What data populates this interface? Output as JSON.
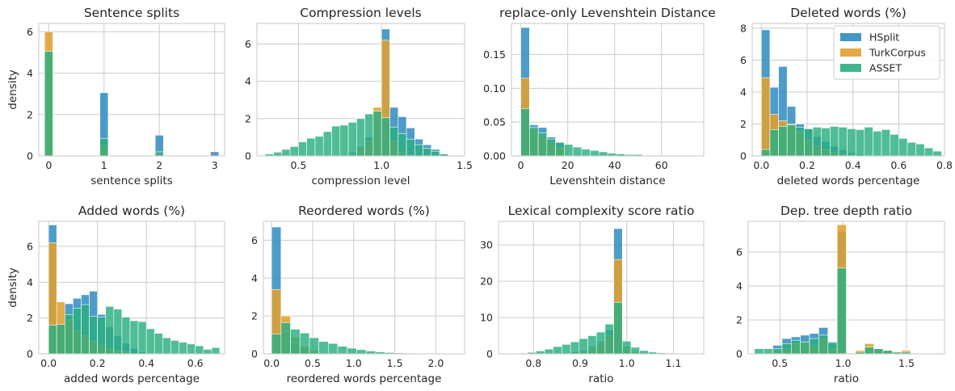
{
  "colors": {
    "HSplit": "#2f8bc0",
    "TurkCorpus": "#e0a030",
    "ASSET": "#2aae80"
  },
  "legend": {
    "entries": [
      "HSplit",
      "TurkCorpus",
      "ASSET"
    ],
    "placement": "top-right",
    "panel": 3
  },
  "chart_data": [
    {
      "type": "bar",
      "title": "Sentence splits",
      "xlabel": "sentence splits",
      "ylabel": "density",
      "xlim": [
        -0.18,
        3.18
      ],
      "ylim": [
        0,
        6.4
      ],
      "xticks": [
        0,
        1,
        2,
        3
      ],
      "xtick_labels": [
        "0",
        "1",
        "2",
        "3"
      ],
      "yticks": [
        0,
        2,
        4,
        6
      ],
      "ytick_labels": [
        "0",
        "2",
        "4",
        "6"
      ],
      "bin_width": 0.15,
      "bins": [
        0,
        1,
        2,
        3
      ],
      "series": [
        {
          "name": "HSplit",
          "values": [
            0.1,
            3.05,
            1.0,
            0.2
          ]
        },
        {
          "name": "TurkCorpus",
          "values": [
            6.0,
            0.5,
            0.15,
            0
          ]
        },
        {
          "name": "ASSET",
          "values": [
            5.05,
            0.85,
            0.2,
            0
          ]
        }
      ]
    },
    {
      "type": "bar",
      "title": "Compression levels",
      "xlabel": "compression level",
      "ylabel": "",
      "xlim": [
        0.25,
        1.5
      ],
      "ylim": [
        0,
        7.1
      ],
      "xticks": [
        0.5,
        1.0,
        1.5
      ],
      "xtick_labels": [
        "0.5",
        "1.0",
        "1.5"
      ],
      "yticks": [
        0,
        2,
        4,
        6
      ],
      "ytick_labels": [
        "0",
        "2",
        "4",
        "6"
      ],
      "bin_width": 0.05,
      "bins": [
        0.3,
        0.35,
        0.4,
        0.45,
        0.5,
        0.55,
        0.6,
        0.65,
        0.7,
        0.75,
        0.8,
        0.85,
        0.9,
        0.95,
        1.0,
        1.05,
        1.1,
        1.15,
        1.2,
        1.25,
        1.3,
        1.35
      ],
      "series": [
        {
          "name": "HSplit",
          "values": [
            0,
            0,
            0,
            0,
            0,
            0,
            0,
            0,
            0,
            0.05,
            0.2,
            0.5,
            1.0,
            1.9,
            6.8,
            2.6,
            2.1,
            1.5,
            0.9,
            0.6,
            0.35,
            0.1
          ]
        },
        {
          "name": "TurkCorpus",
          "values": [
            0,
            0,
            0,
            0,
            0,
            0,
            0,
            0,
            0,
            0,
            0.1,
            0.4,
            0.8,
            2.6,
            6.2,
            0.8,
            0.2,
            0.05,
            0,
            0,
            0,
            0
          ]
        },
        {
          "name": "ASSET",
          "values": [
            0.1,
            0.2,
            0.35,
            0.5,
            0.75,
            0.95,
            1.05,
            1.3,
            1.6,
            1.65,
            1.8,
            2.0,
            2.25,
            2.4,
            2.05,
            1.55,
            1.2,
            0.9,
            0.6,
            0.4,
            0.25,
            0.1
          ]
        }
      ]
    },
    {
      "type": "bar",
      "title": "replace-only Levenshtein Distance",
      "xlabel": "Levenshtein distance",
      "ylabel": "",
      "xlim": [
        -4,
        78
      ],
      "ylim": [
        0,
        0.196
      ],
      "xticks": [
        0,
        20,
        40,
        60
      ],
      "xtick_labels": [
        "0",
        "20",
        "40",
        "60"
      ],
      "yticks": [
        0,
        0.05,
        0.1,
        0.15
      ],
      "ytick_labels": [
        "0.00",
        "0.05",
        "0.10",
        "0.15"
      ],
      "bin_width": 3.7,
      "bins": [
        0,
        3.7,
        7.4,
        11.1,
        14.8,
        18.5,
        22.2,
        25.9,
        29.6,
        33.3,
        37,
        40.7,
        44.4,
        48.1,
        51.8,
        55.5,
        59.2,
        62.9,
        66.6,
        70.3
      ],
      "series": [
        {
          "name": "HSplit",
          "values": [
            0.19,
            0.046,
            0.042,
            0.028,
            0.02,
            0,
            0,
            0,
            0,
            0,
            0,
            0,
            0,
            0,
            0,
            0,
            0,
            0,
            0,
            0
          ]
        },
        {
          "name": "TurkCorpus",
          "values": [
            0.115,
            0.04,
            0.03,
            0.02,
            0.012,
            0,
            0,
            0,
            0,
            0,
            0,
            0,
            0,
            0,
            0,
            0,
            0,
            0,
            0,
            0
          ]
        },
        {
          "name": "ASSET",
          "values": [
            0.07,
            0.042,
            0.034,
            0.025,
            0.02,
            0.017,
            0.013,
            0.01,
            0.008,
            0.006,
            0.004,
            0.003,
            0.002,
            0.002,
            0.001,
            0.001,
            0.001,
            0.0005,
            0.0003,
            0.0002
          ]
        }
      ]
    },
    {
      "type": "bar",
      "title": "Deleted words (%)",
      "xlabel": "deleted words percentage",
      "ylabel": "",
      "xlim": [
        -0.04,
        0.8
      ],
      "ylim": [
        0,
        8.3
      ],
      "xticks": [
        0,
        0.2,
        0.4,
        0.6,
        0.8
      ],
      "xtick_labels": [
        "0.0",
        "0.2",
        "0.4",
        "0.6",
        "0.8"
      ],
      "yticks": [
        0,
        2,
        4,
        6,
        8
      ],
      "ytick_labels": [
        "0",
        "2",
        "4",
        "6",
        "8"
      ],
      "bin_width": 0.0375,
      "bins": [
        0,
        0.0375,
        0.075,
        0.1125,
        0.15,
        0.1875,
        0.225,
        0.2625,
        0.3,
        0.3375,
        0.375,
        0.4125,
        0.45,
        0.4875,
        0.525,
        0.5625,
        0.6,
        0.6375,
        0.675,
        0.7125,
        0.75
      ],
      "series": [
        {
          "name": "HSplit",
          "values": [
            7.9,
            4.3,
            5.6,
            3.1,
            2.0,
            1.7,
            1.2,
            0.9,
            0.6,
            0.4,
            0.2,
            0.1,
            0,
            0,
            0,
            0,
            0,
            0,
            0,
            0,
            0
          ]
        },
        {
          "name": "TurkCorpus",
          "values": [
            4.9,
            2.6,
            2.2,
            2.0,
            1.5,
            1.0,
            0.6,
            0.4,
            0.2,
            0.1,
            0.05,
            0,
            0,
            0,
            0,
            0,
            0,
            0,
            0,
            0,
            0
          ]
        },
        {
          "name": "ASSET",
          "values": [
            0.4,
            1.65,
            1.85,
            1.95,
            1.8,
            1.7,
            1.8,
            1.75,
            1.85,
            1.8,
            1.7,
            1.65,
            1.8,
            1.55,
            1.65,
            1.35,
            1.1,
            0.85,
            0.75,
            0.5,
            0.3
          ]
        }
      ]
    },
    {
      "type": "bar",
      "title": "Added words (%)",
      "xlabel": "added words percentage",
      "ylabel": "density",
      "xlim": [
        -0.04,
        0.72
      ],
      "ylim": [
        0,
        7.4
      ],
      "xticks": [
        0,
        0.2,
        0.4,
        0.6
      ],
      "xtick_labels": [
        "0.0",
        "0.2",
        "0.4",
        "0.6"
      ],
      "yticks": [
        0,
        2,
        4,
        6
      ],
      "ytick_labels": [
        "0",
        "2",
        "4",
        "6"
      ],
      "bin_width": 0.0333,
      "bins": [
        0,
        0.0333,
        0.0667,
        0.1,
        0.1333,
        0.1667,
        0.2,
        0.2333,
        0.2667,
        0.3,
        0.3333,
        0.3667,
        0.4,
        0.4333,
        0.4667,
        0.5,
        0.5333,
        0.5667,
        0.6,
        0.6333,
        0.6667
      ],
      "series": [
        {
          "name": "HSplit",
          "values": [
            7.2,
            1.6,
            2.8,
            3.1,
            3.3,
            3.5,
            2.2,
            1.5,
            1.0,
            0.6,
            0.3,
            0.1,
            0,
            0,
            0,
            0,
            0,
            0,
            0,
            0,
            0
          ]
        },
        {
          "name": "TurkCorpus",
          "values": [
            6.2,
            2.9,
            1.9,
            1.3,
            1.0,
            0.7,
            0.5,
            0.3,
            0.15,
            0.1,
            0,
            0,
            0,
            0,
            0,
            0,
            0,
            0,
            0,
            0,
            0
          ]
        },
        {
          "name": "ASSET",
          "values": [
            1.6,
            1.65,
            2.2,
            2.55,
            2.75,
            2.1,
            2.05,
            2.65,
            2.5,
            2.05,
            1.85,
            1.8,
            1.4,
            1.15,
            0.9,
            0.75,
            0.65,
            0.55,
            0.45,
            0.25,
            0.35
          ]
        }
      ]
    },
    {
      "type": "bar",
      "title": "Reordered words (%)",
      "xlabel": "reordered words percentage",
      "ylabel": "",
      "xlim": [
        -0.1,
        2.35
      ],
      "ylim": [
        0,
        7.0
      ],
      "xticks": [
        0,
        0.5,
        1.0,
        1.5,
        2.0
      ],
      "xtick_labels": [
        "0.0",
        "0.5",
        "1.0",
        "1.5",
        "2.0"
      ],
      "yticks": [
        0,
        2,
        4,
        6
      ],
      "ytick_labels": [
        "0",
        "2",
        "4",
        "6"
      ],
      "bin_width": 0.115,
      "bins": [
        0,
        0.115,
        0.23,
        0.345,
        0.46,
        0.575,
        0.69,
        0.805,
        0.92,
        1.035,
        1.15,
        1.265,
        1.38,
        1.495,
        1.61,
        1.725,
        1.84,
        1.955,
        2.07,
        2.185
      ],
      "series": [
        {
          "name": "HSplit",
          "values": [
            6.7,
            1.1,
            0.5,
            0.25,
            0.1,
            0,
            0,
            0,
            0,
            0,
            0,
            0,
            0,
            0,
            0,
            0,
            0,
            0,
            0,
            0
          ]
        },
        {
          "name": "TurkCorpus",
          "values": [
            3.4,
            2.0,
            0.9,
            0.4,
            0.2,
            0.05,
            0,
            0,
            0,
            0,
            0,
            0,
            0,
            0,
            0,
            0,
            0,
            0,
            0,
            0
          ]
        },
        {
          "name": "ASSET",
          "values": [
            1.05,
            1.65,
            1.3,
            1.1,
            0.85,
            0.65,
            0.55,
            0.4,
            0.3,
            0.22,
            0.15,
            0.1,
            0.07,
            0.05,
            0.04,
            0.03,
            0.02,
            0.015,
            0.01,
            0.01
          ]
        }
      ]
    },
    {
      "type": "bar",
      "title": "Lexical complexity score ratio",
      "xlabel": "ratio",
      "ylabel": "",
      "xlim": [
        0.725,
        1.165
      ],
      "ylim": [
        0,
        36.5
      ],
      "xticks": [
        0.8,
        0.9,
        1.0,
        1.1
      ],
      "xtick_labels": [
        "0.8",
        "0.9",
        "1.0",
        "1.1"
      ],
      "yticks": [
        0,
        10,
        20,
        30
      ],
      "ytick_labels": [
        "0",
        "10",
        "20",
        "30"
      ],
      "bin_width": 0.0185,
      "bins": [
        0.75,
        0.7685,
        0.787,
        0.8055,
        0.824,
        0.8425,
        0.861,
        0.8795,
        0.898,
        0.9165,
        0.935,
        0.9535,
        0.972,
        0.9905,
        1.009,
        1.0275,
        1.046,
        1.0645,
        1.083,
        1.1015,
        1.12
      ],
      "series": [
        {
          "name": "HSplit",
          "values": [
            0,
            0,
            0,
            0,
            0,
            0,
            0,
            0.5,
            1.0,
            2.0,
            3.5,
            6.5,
            34.5,
            2.0,
            0.8,
            0.2,
            0,
            0,
            0,
            0,
            0
          ]
        },
        {
          "name": "TurkCorpus",
          "values": [
            0,
            0,
            0,
            0,
            0,
            0,
            0,
            0,
            0.5,
            1.5,
            3.0,
            5.0,
            26.0,
            1.5,
            0.5,
            0,
            0,
            0,
            0,
            0,
            0
          ]
        },
        {
          "name": "ASSET",
          "values": [
            0.1,
            0.2,
            0.4,
            0.8,
            1.3,
            2.0,
            2.6,
            3.3,
            4.2,
            5.0,
            6.0,
            8.2,
            14.2,
            3.5,
            1.8,
            0.9,
            0.5,
            0.3,
            0.2,
            0.1,
            0.05
          ]
        }
      ]
    },
    {
      "type": "bar",
      "title": "Dep. tree depth ratio",
      "xlabel": "ratio",
      "ylabel": "",
      "xlim": [
        0.25,
        1.8
      ],
      "ylim": [
        0,
        7.8
      ],
      "xticks": [
        0.5,
        1.0,
        1.5
      ],
      "xtick_labels": [
        "0.5",
        "1.0",
        "1.5"
      ],
      "yticks": [
        0,
        2,
        4,
        6
      ],
      "ytick_labels": [
        "0",
        "2",
        "4",
        "6"
      ],
      "bin_width": 0.0725,
      "bins": [
        0.3,
        0.3725,
        0.445,
        0.5175,
        0.59,
        0.6625,
        0.735,
        0.8075,
        0.88,
        0.9525,
        1.025,
        1.0975,
        1.17,
        1.2425,
        1.315,
        1.3875,
        1.46
      ],
      "series": [
        {
          "name": "HSplit",
          "values": [
            0,
            0,
            0.5,
            0.9,
            1.0,
            1.1,
            1.2,
            1.55,
            0.6,
            7.2,
            0,
            0.1,
            0.2,
            0.05,
            0,
            0,
            0
          ]
        },
        {
          "name": "TurkCorpus",
          "values": [
            0,
            0,
            0.2,
            0.3,
            0.6,
            0.7,
            0.5,
            0.9,
            0.3,
            7.6,
            0,
            0.2,
            0.6,
            0.3,
            0.2,
            0.1,
            0.2
          ]
        },
        {
          "name": "ASSET",
          "values": [
            0.3,
            0.3,
            0.3,
            0.6,
            0.8,
            0.7,
            0.9,
            1.1,
            0.7,
            5.05,
            0,
            0.1,
            0.4,
            0.3,
            0.2,
            0.1,
            0.1
          ]
        }
      ]
    }
  ]
}
